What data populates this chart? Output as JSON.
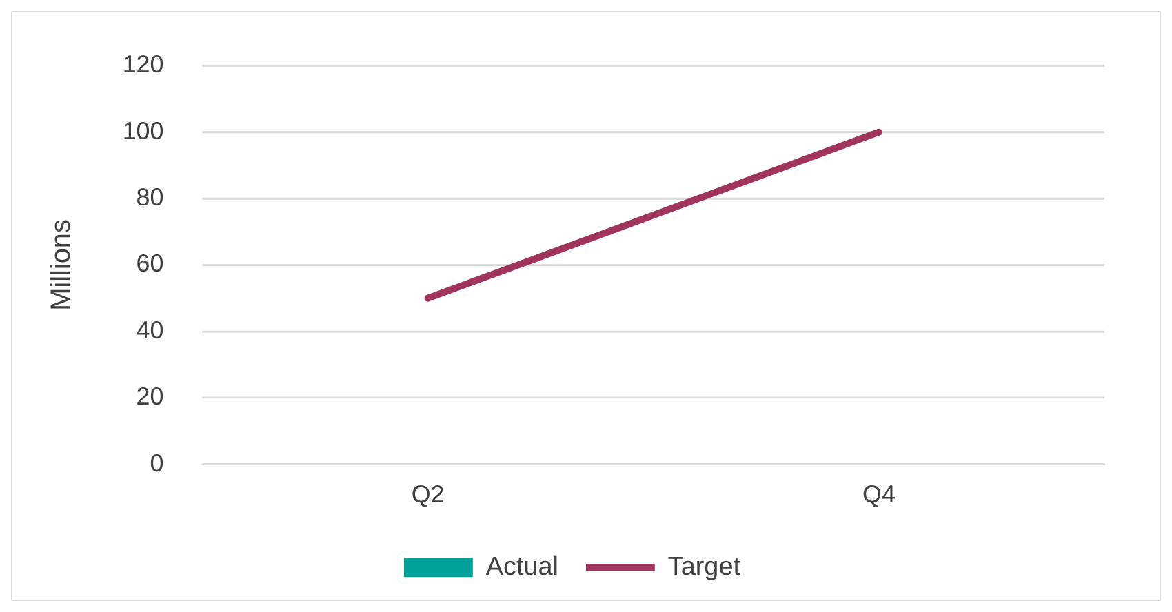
{
  "chart_data": {
    "type": "bar",
    "categories": [
      "Q2",
      "Q4"
    ],
    "ylabel": "Millions",
    "ylim": [
      0,
      120
    ],
    "yticks": [
      0,
      20,
      40,
      60,
      80,
      100,
      120
    ],
    "grid": "y",
    "legend": "bottom",
    "series": [
      {
        "name": "Actual",
        "color": "#00a19a",
        "values": [
          null,
          null
        ]
      },
      {
        "name": "Target",
        "type": "line",
        "color": "#a0345e",
        "values": [
          50,
          100
        ]
      }
    ]
  }
}
